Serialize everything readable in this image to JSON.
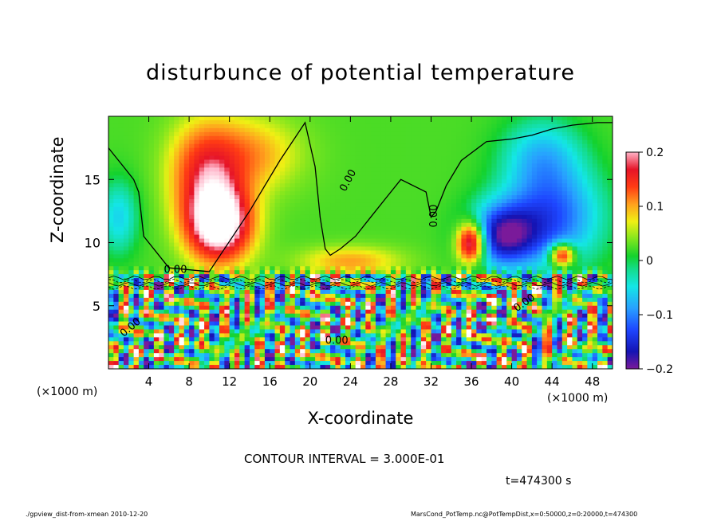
{
  "chart_data": {
    "type": "heatmap",
    "title": "disturbunce of potential temperature",
    "xlabel": "X-coordinate",
    "ylabel": "Z-coordinate",
    "x_unit_label": "(×1000 m)",
    "x_unit_label_right": "(×1000 m)",
    "xlim": [
      0,
      50
    ],
    "ylim": [
      0,
      20
    ],
    "xticks": [
      4,
      8,
      12,
      16,
      20,
      24,
      28,
      32,
      36,
      40,
      44,
      48
    ],
    "yticks": [
      5,
      10,
      15
    ],
    "colorbar": {
      "range": [
        -0.2,
        0.2
      ],
      "ticks": [
        "0.2",
        "0.1",
        "0",
        "−0.1",
        "−0.2"
      ],
      "tick_values": [
        0.2,
        0.1,
        0,
        -0.1,
        -0.2
      ]
    },
    "contour_label": "0.00",
    "contour_interval": "CONTOUR INTERVAL = 3.000E-01",
    "time_label": "t=474300 s",
    "footer_left": "./gpview_dist-from-xmean  2010-12-20",
    "footer_right": "MarsCond_PotTemp.nc@PotTempDist,x=0:50000,z=0:20000,t=474300",
    "features": [
      {
        "kind": "warm",
        "x": 11,
        "z": 11.5,
        "value": 0.25,
        "sx": 3.2,
        "sz": 3.0
      },
      {
        "kind": "warm",
        "x": 9.5,
        "z": 15.5,
        "value": 0.12,
        "sx": 3.5,
        "sz": 4.0
      },
      {
        "kind": "warm",
        "x": 14,
        "z": 17,
        "value": 0.08,
        "sx": 5,
        "sz": 3
      },
      {
        "kind": "warm",
        "x": 24,
        "z": 8.5,
        "value": 0.08,
        "sx": 5,
        "sz": 1.2
      },
      {
        "kind": "cold",
        "x": 39,
        "z": 10.5,
        "value": -0.18,
        "sx": 3.5,
        "sz": 2.5
      },
      {
        "kind": "cold",
        "x": 44,
        "z": 12,
        "value": -0.14,
        "sx": 5,
        "sz": 4
      },
      {
        "kind": "cold",
        "x": 43,
        "z": 17,
        "value": -0.08,
        "sx": 4,
        "sz": 3
      },
      {
        "kind": "cold",
        "x": 1,
        "z": 12,
        "value": -0.08,
        "sx": 2,
        "sz": 3
      },
      {
        "kind": "warm",
        "x": 36,
        "z": 10,
        "value": 0.25,
        "sx": 1.4,
        "sz": 1.6
      },
      {
        "kind": "warm",
        "x": 45,
        "z": 9.0,
        "value": 0.2,
        "sx": 1.2,
        "sz": 0.9
      }
    ],
    "zero_contour_x": [
      0.0,
      0.5,
      1.5,
      2.5,
      3.0,
      3.5,
      6.0,
      10.0,
      14.0,
      17.0,
      19.5,
      20.5,
      21.0,
      21.5,
      22.0,
      23.0,
      24.5,
      26.0,
      27.5,
      29.0,
      31.5,
      32.0,
      32.5,
      33.5,
      35.0,
      37.5,
      40.0,
      42.0,
      44.0,
      46.0,
      48.5,
      50.0
    ],
    "zero_contour_z": [
      17.5,
      17.0,
      16.0,
      15.0,
      14.0,
      10.5,
      8.0,
      7.7,
      12.5,
      16.5,
      19.5,
      16.0,
      12.0,
      9.5,
      9.0,
      9.5,
      10.5,
      12.0,
      13.5,
      15.0,
      14.0,
      12.0,
      12.5,
      14.5,
      16.5,
      18.0,
      18.2,
      18.5,
      19.0,
      19.3,
      19.5,
      19.5
    ]
  }
}
